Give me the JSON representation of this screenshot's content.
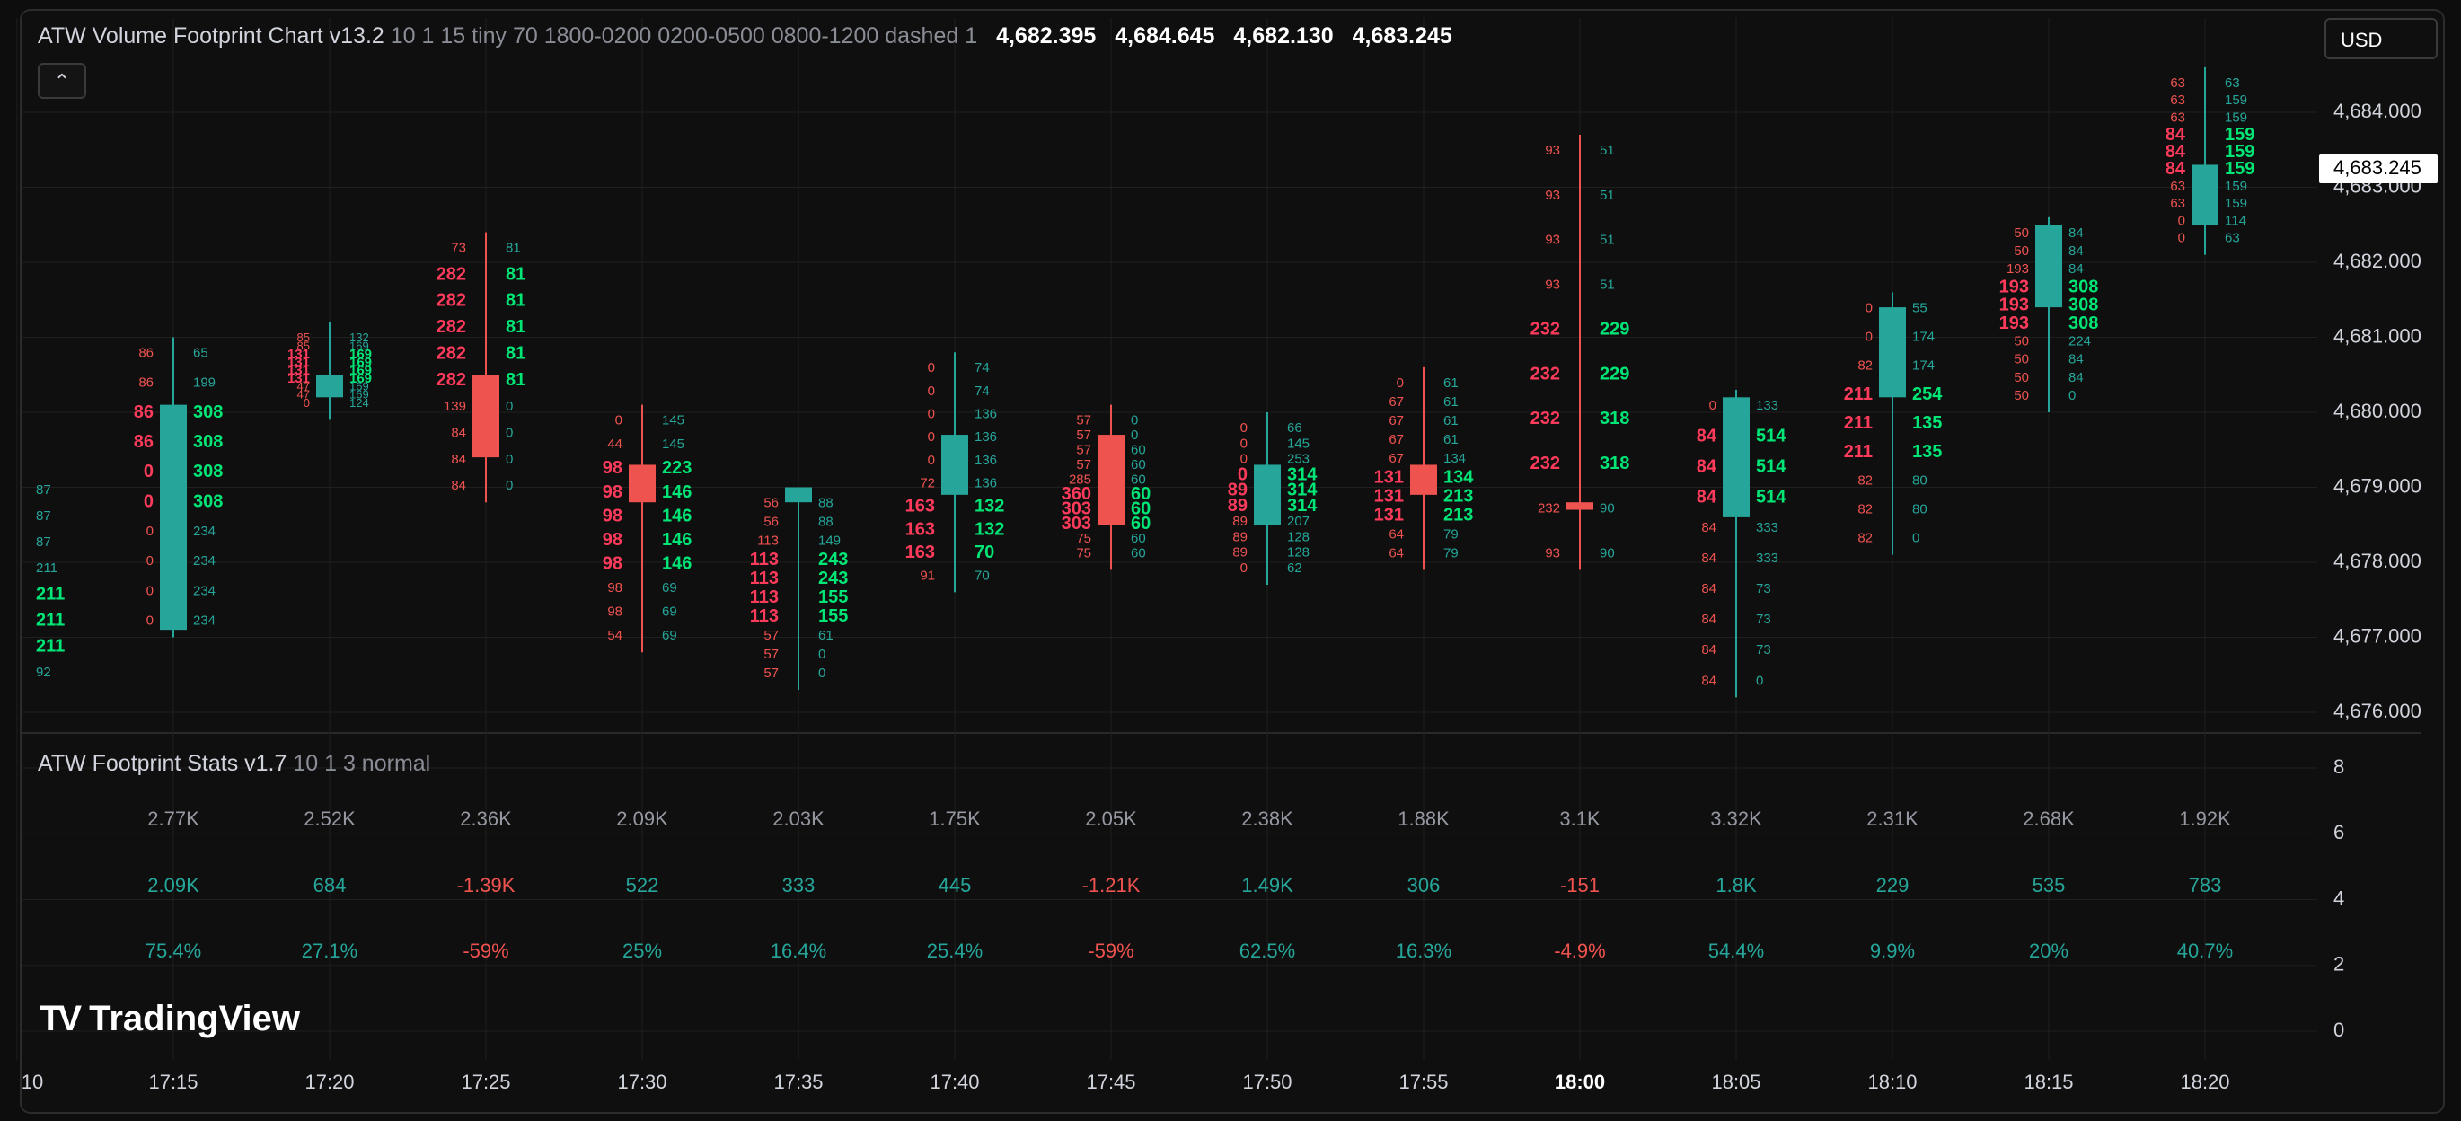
{
  "colors": {
    "up": "#26a69a",
    "down": "#ef5350",
    "ask_hi": "#00e676",
    "bid_hi": "#ff3b5c",
    "grid": "#1f1f1f",
    "text": "#d1d4dc",
    "axis_text": "#d1d4dc",
    "stat_gray": "#9598a1"
  },
  "header": {
    "title": "ATW Volume Footprint Chart v13.2",
    "params": "10 1 15 tiny 70 1800-0200 0200-0500 0800-1200 dashed 1",
    "open": "4,682.395",
    "high": "4,684.645",
    "low": "4,682.130",
    "close": "4,683.245"
  },
  "stats_header": {
    "title": "ATW Footprint Stats v1.7",
    "params": "10 1 3 normal"
  },
  "currency": "USD",
  "collapse_icon": "chevron-up-icon",
  "last_price_label": "4,683.245",
  "logo_text": "TradingView",
  "chart_data": [
    {
      "type": "candlestick-footprint",
      "title": "ATW Volume Footprint Chart v13.2",
      "x_labels": [
        "10",
        "17:15",
        "17:20",
        "17:25",
        "17:30",
        "17:35",
        "17:40",
        "17:45",
        "17:50",
        "17:55",
        "18:00",
        "18:05",
        "18:10",
        "18:15",
        "18:20"
      ],
      "bold_x_label": "18:00",
      "y_ticks": [
        "4,684.000",
        "4,683.000",
        "4,682.000",
        "4,681.000",
        "4,680.000",
        "4,679.000",
        "4,678.000",
        "4,677.000",
        "4,676.000"
      ],
      "ylim": [
        4676.0,
        4684.6
      ],
      "candles": [
        {
          "time": "17:15",
          "o": 4677.1,
          "h": 4681.0,
          "l": 4677.0,
          "c": 4680.1,
          "dir": "up",
          "rows": [
            [
              "86",
              "65"
            ],
            [
              "86",
              "199"
            ],
            [
              "86",
              "308"
            ],
            [
              "86",
              "308"
            ],
            [
              "0",
              "308"
            ],
            [
              "0",
              "308"
            ],
            [
              "0",
              "234"
            ],
            [
              "0",
              "234"
            ],
            [
              "0",
              "234"
            ],
            [
              "0",
              "234"
            ]
          ],
          "hi": [
            0,
            0,
            1,
            1,
            1,
            1,
            0,
            0,
            0,
            0
          ]
        },
        {
          "time": "17:20",
          "o": 4680.2,
          "h": 4681.2,
          "l": 4679.9,
          "c": 4680.5,
          "dir": "up",
          "rows": [
            [
              "85",
              "132"
            ],
            [
              "85",
              "169"
            ],
            [
              "131",
              "169"
            ],
            [
              "131",
              "169"
            ],
            [
              "131",
              "169"
            ],
            [
              "131",
              "169"
            ],
            [
              "47",
              "169"
            ],
            [
              "47",
              "169"
            ],
            [
              "0",
              "124"
            ]
          ],
          "hi": [
            0,
            0,
            1,
            1,
            1,
            1,
            0,
            0,
            0
          ]
        },
        {
          "time": "17:25",
          "o": 4680.5,
          "h": 4682.4,
          "l": 4678.8,
          "c": 4679.4,
          "dir": "down",
          "rows": [
            [
              "73",
              "81"
            ],
            [
              "282",
              "81"
            ],
            [
              "282",
              "81"
            ],
            [
              "282",
              "81"
            ],
            [
              "282",
              "81"
            ],
            [
              "282",
              "81"
            ],
            [
              "139",
              "0"
            ],
            [
              "84",
              "0"
            ],
            [
              "84",
              "0"
            ],
            [
              "84",
              "0"
            ]
          ],
          "hi": [
            0,
            1,
            1,
            1,
            1,
            1,
            0,
            0,
            0,
            0
          ]
        },
        {
          "time": "17:30",
          "o": 4679.3,
          "h": 4680.1,
          "l": 4676.8,
          "c": 4678.8,
          "dir": "down",
          "rows": [
            [
              "0",
              "145"
            ],
            [
              "44",
              "145"
            ],
            [
              "98",
              "223"
            ],
            [
              "98",
              "146"
            ],
            [
              "98",
              "146"
            ],
            [
              "98",
              "146"
            ],
            [
              "98",
              "146"
            ],
            [
              "98",
              "69"
            ],
            [
              "98",
              "69"
            ],
            [
              "54",
              "69"
            ]
          ],
          "hi": [
            0,
            0,
            1,
            1,
            1,
            1,
            1,
            0,
            0,
            0
          ]
        },
        {
          "time": "17:35",
          "o": 4678.8,
          "h": 4679.0,
          "l": 4676.3,
          "c": 4679.0,
          "dir": "up",
          "rows": [
            [
              "56",
              "88"
            ],
            [
              "56",
              "88"
            ],
            [
              "113",
              "149"
            ],
            [
              "113",
              "243"
            ],
            [
              "113",
              "243"
            ],
            [
              "113",
              "155"
            ],
            [
              "113",
              "155"
            ],
            [
              "57",
              "61"
            ],
            [
              "57",
              "0"
            ],
            [
              "57",
              "0"
            ]
          ],
          "hi": [
            0,
            0,
            0,
            1,
            1,
            1,
            1,
            0,
            0,
            0
          ]
        },
        {
          "time": "17:40",
          "o": 4678.9,
          "h": 4680.8,
          "l": 4677.6,
          "c": 4679.7,
          "dir": "up",
          "rows": [
            [
              "0",
              "74"
            ],
            [
              "0",
              "74"
            ],
            [
              "0",
              "136"
            ],
            [
              "0",
              "136"
            ],
            [
              "0",
              "136"
            ],
            [
              "72",
              "136"
            ],
            [
              "163",
              "132"
            ],
            [
              "163",
              "132"
            ],
            [
              "163",
              "70"
            ],
            [
              "91",
              "70"
            ]
          ],
          "hi": [
            0,
            0,
            0,
            0,
            0,
            0,
            1,
            1,
            1,
            0
          ]
        },
        {
          "time": "17:45",
          "o": 4679.7,
          "h": 4680.1,
          "l": 4677.9,
          "c": 4678.5,
          "dir": "down",
          "rows": [
            [
              "57",
              "0"
            ],
            [
              "57",
              "0"
            ],
            [
              "57",
              "60"
            ],
            [
              "57",
              "60"
            ],
            [
              "285",
              "60"
            ],
            [
              "360",
              "60"
            ],
            [
              "303",
              "60"
            ],
            [
              "303",
              "60"
            ],
            [
              "75",
              "60"
            ],
            [
              "75",
              "60"
            ]
          ],
          "hi": [
            0,
            0,
            0,
            0,
            0,
            1,
            1,
            1,
            0,
            0
          ]
        },
        {
          "time": "17:50",
          "o": 4678.5,
          "h": 4680.0,
          "l": 4677.7,
          "c": 4679.3,
          "dir": "up",
          "rows": [
            [
              "0",
              "66"
            ],
            [
              "0",
              "145"
            ],
            [
              "0",
              "253"
            ],
            [
              "0",
              "314"
            ],
            [
              "89",
              "314"
            ],
            [
              "89",
              "314"
            ],
            [
              "89",
              "207"
            ],
            [
              "89",
              "128"
            ],
            [
              "89",
              "128"
            ],
            [
              "0",
              "62"
            ]
          ],
          "hi": [
            0,
            0,
            0,
            1,
            1,
            1,
            0,
            0,
            0,
            0
          ]
        },
        {
          "time": "17:55",
          "o": 4679.3,
          "h": 4680.6,
          "l": 4677.9,
          "c": 4678.9,
          "dir": "down",
          "rows": [
            [
              "0",
              "61"
            ],
            [
              "67",
              "61"
            ],
            [
              "67",
              "61"
            ],
            [
              "67",
              "61"
            ],
            [
              "67",
              "134"
            ],
            [
              "131",
              "134"
            ],
            [
              "131",
              "213"
            ],
            [
              "131",
              "213"
            ],
            [
              "64",
              "79"
            ],
            [
              "64",
              "79"
            ]
          ],
          "hi": [
            0,
            0,
            0,
            0,
            0,
            1,
            1,
            1,
            0,
            0
          ]
        },
        {
          "time": "18:00",
          "o": 4678.8,
          "h": 4683.7,
          "l": 4677.9,
          "c": 4678.7,
          "dir": "down",
          "rows": [
            [
              "93",
              "51"
            ],
            [
              "93",
              "51"
            ],
            [
              "93",
              "51"
            ],
            [
              "93",
              "51"
            ],
            [
              "232",
              "229"
            ],
            [
              "232",
              "229"
            ],
            [
              "232",
              "318"
            ],
            [
              "232",
              "318"
            ],
            [
              "232",
              "90"
            ],
            [
              "93",
              "90"
            ]
          ],
          "hi": [
            0,
            0,
            0,
            0,
            1,
            1,
            1,
            1,
            0,
            0
          ]
        },
        {
          "time": "18:05",
          "o": 4678.6,
          "h": 4680.3,
          "l": 4676.2,
          "c": 4680.2,
          "dir": "up",
          "rows": [
            [
              "0",
              "133"
            ],
            [
              "84",
              "514"
            ],
            [
              "84",
              "514"
            ],
            [
              "84",
              "514"
            ],
            [
              "84",
              "333"
            ],
            [
              "84",
              "333"
            ],
            [
              "84",
              "73"
            ],
            [
              "84",
              "73"
            ],
            [
              "84",
              "73"
            ],
            [
              "84",
              "0"
            ]
          ],
          "hi": [
            0,
            1,
            1,
            1,
            0,
            0,
            0,
            0,
            0,
            0
          ]
        },
        {
          "time": "18:10",
          "o": 4680.2,
          "h": 4681.6,
          "l": 4678.1,
          "c": 4681.4,
          "dir": "up",
          "rows": [
            [
              "0",
              "55"
            ],
            [
              "0",
              "174"
            ],
            [
              "82",
              "174"
            ],
            [
              "211",
              "254"
            ],
            [
              "211",
              "135"
            ],
            [
              "211",
              "135"
            ],
            [
              "82",
              "80"
            ],
            [
              "82",
              "80"
            ],
            [
              "82",
              "0"
            ]
          ],
          "hi": [
            0,
            0,
            0,
            1,
            1,
            1,
            0,
            0,
            0
          ]
        },
        {
          "time": "18:15",
          "o": 4681.4,
          "h": 4682.6,
          "l": 4680.0,
          "c": 4682.5,
          "dir": "up",
          "rows": [
            [
              "50",
              "84"
            ],
            [
              "50",
              "84"
            ],
            [
              "193",
              "84"
            ],
            [
              "193",
              "308"
            ],
            [
              "193",
              "308"
            ],
            [
              "193",
              "308"
            ],
            [
              "50",
              "224"
            ],
            [
              "50",
              "84"
            ],
            [
              "50",
              "84"
            ],
            [
              "50",
              "0"
            ]
          ],
          "hi": [
            0,
            0,
            0,
            1,
            1,
            1,
            0,
            0,
            0,
            0
          ]
        },
        {
          "time": "18:20",
          "o": 4682.5,
          "h": 4684.6,
          "l": 4682.1,
          "c": 4683.3,
          "dir": "up",
          "rows": [
            [
              "63",
              "63"
            ],
            [
              "63",
              "159"
            ],
            [
              "63",
              "159"
            ],
            [
              "84",
              "159"
            ],
            [
              "84",
              "159"
            ],
            [
              "84",
              "159"
            ],
            [
              "63",
              "159"
            ],
            [
              "63",
              "159"
            ],
            [
              "0",
              "114"
            ],
            [
              "0",
              "63"
            ]
          ],
          "hi": [
            0,
            0,
            0,
            1,
            1,
            1,
            0,
            0,
            0,
            0
          ]
        }
      ],
      "partial_left": {
        "rows": [
          "87",
          "87",
          "87",
          "211",
          "211",
          "211",
          "211",
          "92"
        ],
        "hi": [
          0,
          0,
          0,
          0,
          1,
          1,
          1,
          0
        ]
      }
    },
    {
      "type": "table",
      "title": "ATW Footprint Stats v1.7",
      "y_ticks": [
        "8",
        "6",
        "4",
        "2",
        "0"
      ],
      "columns": [
        "17:15",
        "17:20",
        "17:25",
        "17:30",
        "17:35",
        "17:40",
        "17:45",
        "17:50",
        "17:55",
        "18:00",
        "18:05",
        "18:10",
        "18:15",
        "18:20"
      ],
      "rows": [
        {
          "name": "total",
          "values": [
            "2.77K",
            "2.52K",
            "2.36K",
            "2.09K",
            "2.03K",
            "1.75K",
            "2.05K",
            "2.38K",
            "1.88K",
            "3.1K",
            "3.32K",
            "2.31K",
            "2.68K",
            "1.92K"
          ]
        },
        {
          "name": "delta",
          "values": [
            "2.09K",
            "684",
            "-1.39K",
            "522",
            "333",
            "445",
            "-1.21K",
            "1.49K",
            "306",
            "-151",
            "1.8K",
            "229",
            "535",
            "783"
          ]
        },
        {
          "name": "delta_pct",
          "values": [
            "75.4%",
            "27.1%",
            "-59%",
            "25%",
            "16.4%",
            "25.4%",
            "-59%",
            "62.5%",
            "16.3%",
            "-4.9%",
            "54.4%",
            "9.9%",
            "20%",
            "40.7%"
          ]
        }
      ]
    }
  ]
}
